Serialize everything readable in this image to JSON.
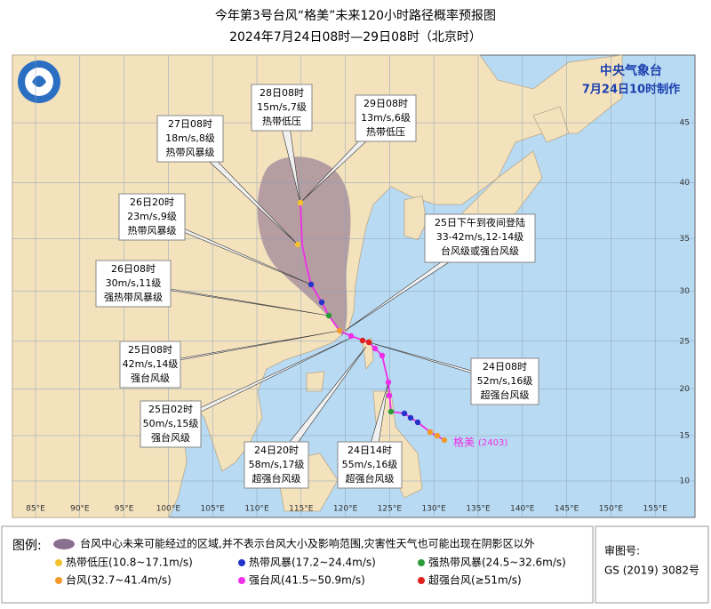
{
  "header": {
    "title": "今年第3号台风“格美”未来120小时路径概率预报图",
    "subtitle": "2024年7月24日08时—29日08时（北京时）"
  },
  "agency": {
    "name": "中央气象台",
    "issued": "7月24日10时制作"
  },
  "callouts": [
    {
      "lines": [
        "28日08时",
        "15m/s,7级",
        "热带低压"
      ]
    },
    {
      "lines": [
        "29日08时",
        "13m/s,6级",
        "热带低压"
      ]
    },
    {
      "lines": [
        "27日08时",
        "18m/s,8级",
        "热带风暴级"
      ]
    },
    {
      "lines": [
        "26日20时",
        "23m/s,9级",
        "热带风暴级"
      ]
    },
    {
      "lines": [
        "25日下午到夜间登陆",
        "33-42m/s,12-14级",
        "台风级或强台风级"
      ]
    },
    {
      "lines": [
        "26日08时",
        "30m/s,11级",
        "强热带风暴级"
      ]
    },
    {
      "lines": [
        "25日08时",
        "42m/s,14级",
        "强台风级"
      ]
    },
    {
      "lines": [
        "24日08时",
        "52m/s,16级",
        "超强台风级"
      ]
    },
    {
      "lines": [
        "25日02时",
        "50m/s,15级",
        "强台风级"
      ]
    },
    {
      "lines": [
        "24日20时",
        "58m/s,17级",
        "超强台风级"
      ]
    },
    {
      "lines": [
        "24日14时",
        "55m/s,16级",
        "超强台风级"
      ]
    }
  ],
  "storm": {
    "name": "格美",
    "code": "(2403)"
  },
  "axes": {
    "longitudes": [
      {
        "value": 85,
        "label": "85°E"
      },
      {
        "value": 90,
        "label": "90°E"
      },
      {
        "value": 95,
        "label": "95°E"
      },
      {
        "value": 100,
        "label": "100°E"
      },
      {
        "value": 105,
        "label": "105°E"
      },
      {
        "value": 110,
        "label": "110°E"
      },
      {
        "value": 115,
        "label": "115°E"
      },
      {
        "value": 120,
        "label": "120°E"
      },
      {
        "value": 125,
        "label": "125°E"
      },
      {
        "value": 130,
        "label": "130°E"
      },
      {
        "value": 135,
        "label": "135°E"
      },
      {
        "value": 140,
        "label": "140°E"
      },
      {
        "value": 145,
        "label": "145°E"
      },
      {
        "value": 150,
        "label": "150°E"
      },
      {
        "value": 155,
        "label": "155°E"
      }
    ],
    "latitudes": [
      10,
      15,
      20,
      25,
      30,
      35,
      40,
      45
    ]
  },
  "legend": {
    "title": "图例:",
    "cone": "台风中心未来可能经过的区域,并不表示台风大小及影响范围,灾害性天气也可能出现在阴影区以外",
    "items": [
      {
        "label": "热带低压(10.8~17.1m/s)",
        "color": "#f2c12e"
      },
      {
        "label": "热带风暴(17.2~24.4m/s)",
        "color": "#2433c8"
      },
      {
        "label": "强热带风暴(24.5~32.6m/s)",
        "color": "#2a9a3a"
      },
      {
        "label": "台风(32.7~41.4m/s)",
        "color": "#f39a2b"
      },
      {
        "label": "强台风(41.5~50.9m/s)",
        "color": "#ee2ee8"
      },
      {
        "label": "超强台风(≥51m/s)",
        "color": "#e0201d"
      }
    ]
  },
  "approval": {
    "label": "审图号:",
    "number": "GS (2019) 3082号"
  }
}
